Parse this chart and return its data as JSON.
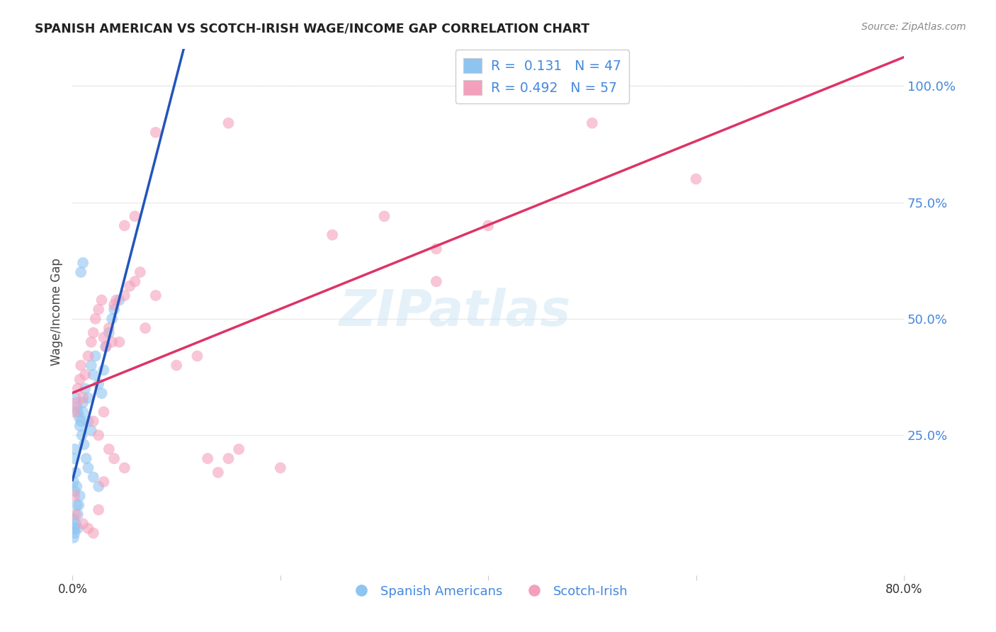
{
  "title": "SPANISH AMERICAN VS SCOTCH-IRISH WAGE/INCOME GAP CORRELATION CHART",
  "source": "Source: ZipAtlas.com",
  "ylabel": "Wage/Income Gap",
  "watermark": "ZIPatlas",
  "legend_blue_R": "0.131",
  "legend_blue_N": "47",
  "legend_pink_R": "0.492",
  "legend_pink_N": "57",
  "legend_label_blue": "Spanish Americans",
  "legend_label_pink": "Scotch-Irish",
  "ytick_labels": [
    "100.0%",
    "75.0%",
    "50.0%",
    "25.0%"
  ],
  "ytick_vals": [
    1.0,
    0.75,
    0.5,
    0.25
  ],
  "xtick_labels": [
    "0.0%",
    "",
    "",
    "",
    "80.0%"
  ],
  "xtick_vals": [
    0.0,
    0.2,
    0.4,
    0.6,
    0.8
  ],
  "blue_color": "#8EC4F0",
  "pink_color": "#F4A0BC",
  "blue_line_color": "#2255BB",
  "pink_line_color": "#DD3366",
  "blue_scatter_x": [
    0.005,
    0.008,
    0.01,
    0.012,
    0.015,
    0.018,
    0.02,
    0.022,
    0.025,
    0.028,
    0.03,
    0.032,
    0.035,
    0.038,
    0.04,
    0.045,
    0.008,
    0.01,
    0.003,
    0.004,
    0.006,
    0.007,
    0.009,
    0.011,
    0.013,
    0.015,
    0.002,
    0.001,
    0.003,
    0.001,
    0.002,
    0.004,
    0.005,
    0.002,
    0.001,
    0.003,
    0.006,
    0.004,
    0.007,
    0.02,
    0.025,
    0.001,
    0.002,
    0.005,
    0.01,
    0.015,
    0.018
  ],
  "blue_scatter_y": [
    0.3,
    0.28,
    0.32,
    0.35,
    0.33,
    0.4,
    0.38,
    0.42,
    0.36,
    0.34,
    0.39,
    0.44,
    0.47,
    0.5,
    0.52,
    0.54,
    0.6,
    0.62,
    0.33,
    0.31,
    0.29,
    0.27,
    0.25,
    0.23,
    0.2,
    0.18,
    0.22,
    0.2,
    0.17,
    0.15,
    0.13,
    0.1,
    0.08,
    0.05,
    0.07,
    0.06,
    0.1,
    0.14,
    0.12,
    0.16,
    0.14,
    0.03,
    0.04,
    0.05,
    0.3,
    0.28,
    0.26
  ],
  "pink_scatter_x": [
    0.002,
    0.004,
    0.005,
    0.007,
    0.008,
    0.01,
    0.012,
    0.015,
    0.018,
    0.02,
    0.022,
    0.025,
    0.028,
    0.03,
    0.032,
    0.035,
    0.038,
    0.04,
    0.042,
    0.05,
    0.055,
    0.045,
    0.06,
    0.065,
    0.07,
    0.08,
    0.1,
    0.12,
    0.13,
    0.14,
    0.15,
    0.16,
    0.2,
    0.02,
    0.025,
    0.03,
    0.035,
    0.04,
    0.05,
    0.08,
    0.15,
    0.5,
    0.35,
    0.25,
    0.3,
    0.4,
    0.6,
    0.35,
    0.05,
    0.06,
    0.002,
    0.003,
    0.01,
    0.015,
    0.02,
    0.025,
    0.03
  ],
  "pink_scatter_y": [
    0.3,
    0.32,
    0.35,
    0.37,
    0.4,
    0.33,
    0.38,
    0.42,
    0.45,
    0.47,
    0.5,
    0.52,
    0.54,
    0.46,
    0.44,
    0.48,
    0.45,
    0.53,
    0.54,
    0.55,
    0.57,
    0.45,
    0.58,
    0.6,
    0.48,
    0.55,
    0.4,
    0.42,
    0.2,
    0.17,
    0.2,
    0.22,
    0.18,
    0.28,
    0.25,
    0.3,
    0.22,
    0.2,
    0.18,
    0.9,
    0.92,
    0.92,
    0.65,
    0.68,
    0.72,
    0.7,
    0.8,
    0.58,
    0.7,
    0.72,
    0.12,
    0.08,
    0.06,
    0.05,
    0.04,
    0.09,
    0.15
  ],
  "xlim": [
    0.0,
    0.8
  ],
  "ylim": [
    -0.05,
    1.08
  ],
  "background_color": "#ffffff",
  "grid_color": "#e8e8e8",
  "title_color": "#222222",
  "source_color": "#888888",
  "axis_label_color": "#444444",
  "right_tick_color": "#4488dd",
  "bottom_legend_color": "#4488dd"
}
